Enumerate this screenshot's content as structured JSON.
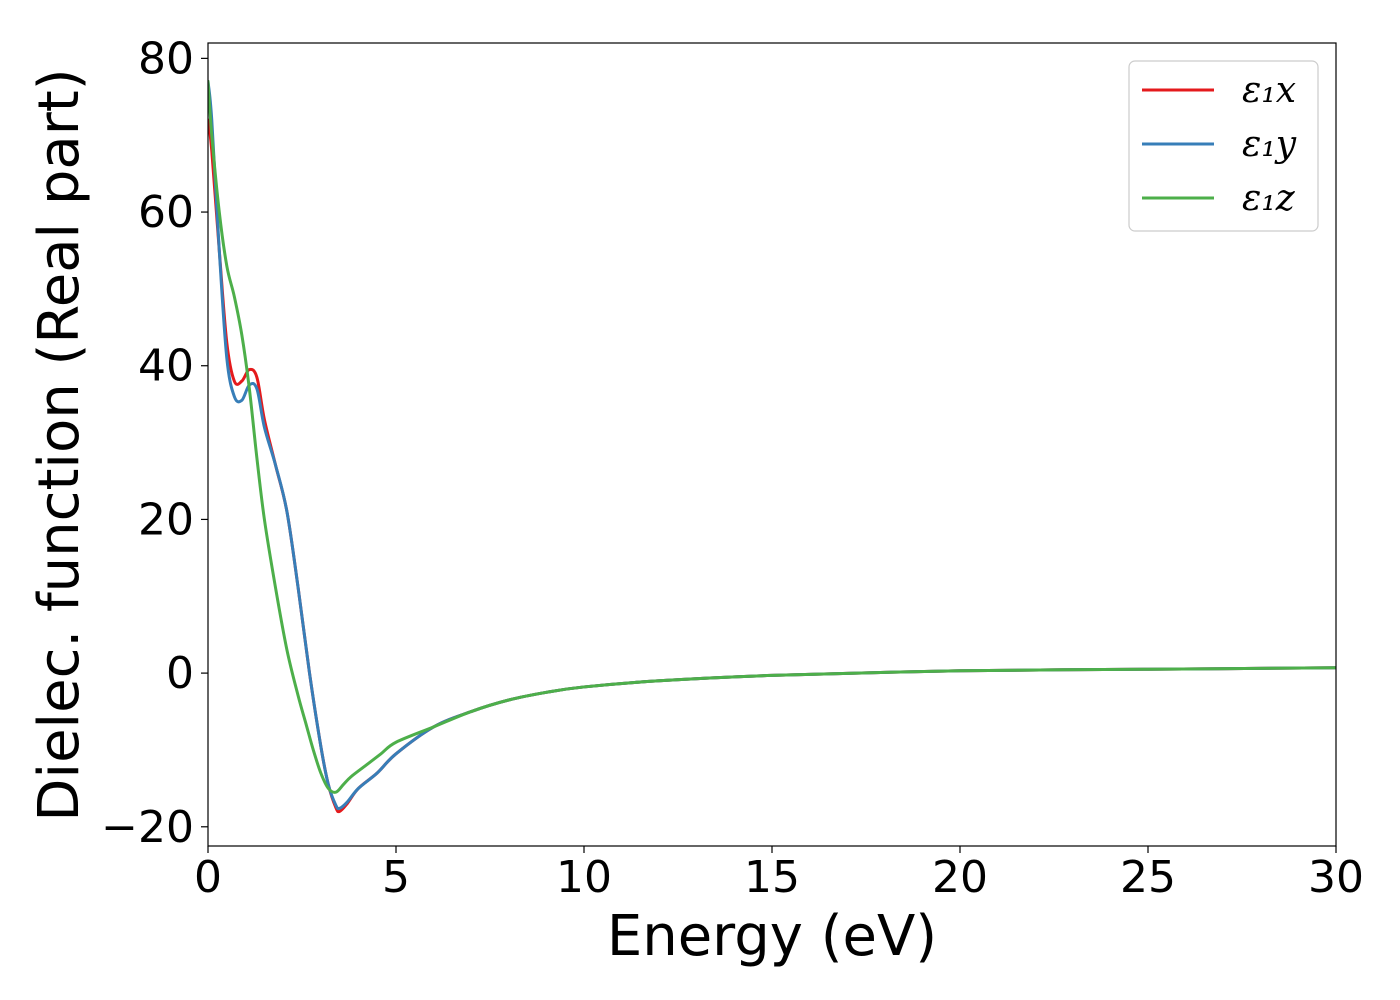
{
  "chart_data": {
    "type": "line",
    "title": "",
    "xlabel": "Energy (eV)",
    "ylabel": "Dielec. function (Real part)",
    "xlim": [
      0,
      30
    ],
    "ylim": [
      -22.5,
      82
    ],
    "xticks": [
      0,
      5,
      10,
      15,
      20,
      25,
      30
    ],
    "xtick_labels": [
      "0",
      "5",
      "10",
      "15",
      "20",
      "25",
      "30"
    ],
    "yticks": [
      -20,
      0,
      20,
      40,
      60,
      80
    ],
    "ytick_labels": [
      "−20",
      "0",
      "20",
      "40",
      "60",
      "80"
    ],
    "grid": false,
    "legend_position": "top-right",
    "series": [
      {
        "name": "ε₁x",
        "color": "#e41a1c",
        "x": [
          0,
          0.1,
          0.3,
          0.5,
          0.7,
          0.9,
          1.1,
          1.3,
          1.5,
          1.8,
          2.1,
          2.4,
          2.7,
          3.0,
          3.2,
          3.4,
          3.5,
          3.7,
          4.0,
          4.5,
          5.0,
          6.0,
          7.0,
          8.0,
          9.0,
          10.0,
          12.0,
          15.0,
          20.0,
          25.0,
          30.0
        ],
        "values": [
          72,
          68,
          55,
          43,
          38,
          38,
          39.5,
          38.5,
          33,
          27,
          21,
          11,
          0,
          -9.5,
          -14.5,
          -17.5,
          -18,
          -17,
          -15,
          -13,
          -10.5,
          -7,
          -5,
          -3.5,
          -2.5,
          -1.8,
          -1,
          -0.3,
          0.3,
          0.5,
          0.7
        ]
      },
      {
        "name": "ε₁y",
        "color": "#377eb8",
        "x": [
          0,
          0.1,
          0.3,
          0.5,
          0.7,
          0.9,
          1.1,
          1.3,
          1.5,
          1.8,
          2.1,
          2.4,
          2.7,
          3.0,
          3.2,
          3.4,
          3.5,
          3.7,
          4.0,
          4.5,
          5.0,
          6.0,
          7.0,
          8.0,
          9.0,
          10.0,
          12.0,
          15.0,
          20.0,
          25.0,
          30.0
        ],
        "values": [
          77,
          72,
          55,
          41,
          36,
          35.5,
          37.5,
          37,
          32,
          27,
          21,
          11,
          0,
          -9.5,
          -14.5,
          -17.2,
          -17.6,
          -16.8,
          -15,
          -13,
          -10.5,
          -7,
          -5,
          -3.5,
          -2.5,
          -1.8,
          -1,
          -0.3,
          0.3,
          0.5,
          0.7
        ]
      },
      {
        "name": "ε₁z",
        "color": "#4daf4a",
        "x": [
          0,
          0.1,
          0.3,
          0.5,
          0.7,
          0.9,
          1.1,
          1.3,
          1.5,
          1.8,
          2.1,
          2.4,
          2.6,
          2.8,
          3.0,
          3.2,
          3.4,
          3.6,
          3.8,
          4.2,
          4.6,
          5.0,
          6.0,
          7.0,
          8.0,
          9.0,
          10.0,
          12.0,
          15.0,
          20.0,
          25.0,
          30.0
        ],
        "values": [
          77,
          70,
          60,
          53,
          49,
          44,
          37,
          28,
          20,
          11,
          3,
          -3,
          -6.5,
          -10,
          -13,
          -15,
          -15.5,
          -14.5,
          -13.5,
          -12,
          -10.5,
          -9,
          -7,
          -5,
          -3.5,
          -2.5,
          -1.8,
          -1,
          -0.3,
          0.3,
          0.5,
          0.7
        ]
      }
    ]
  }
}
